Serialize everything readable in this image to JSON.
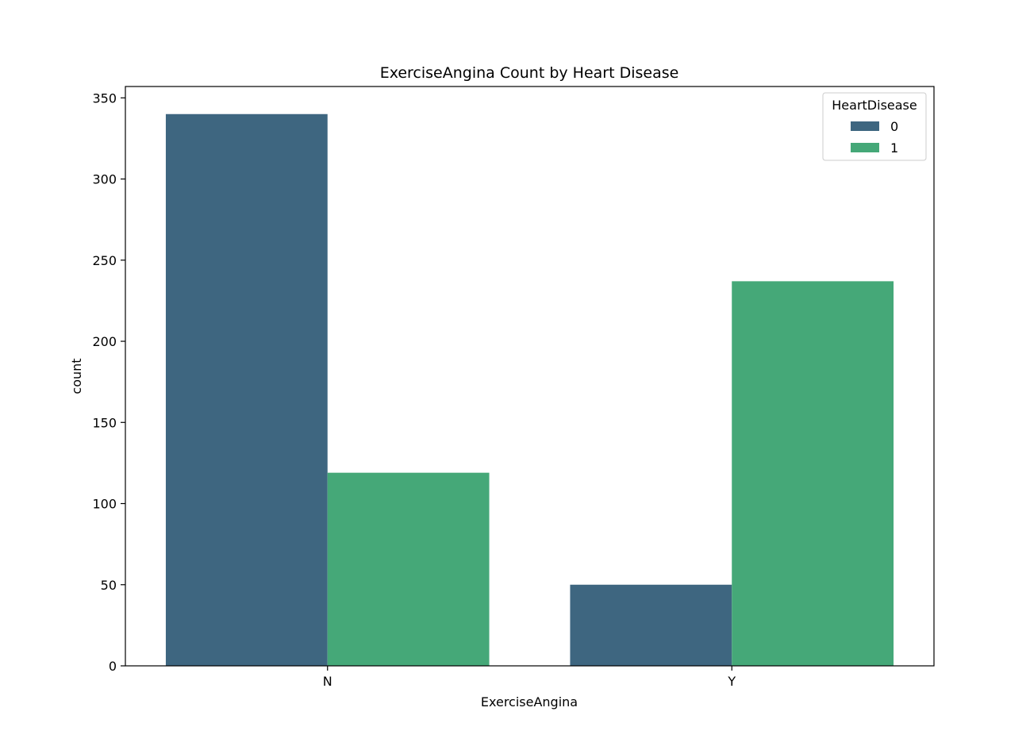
{
  "chart_data": {
    "type": "bar",
    "title": "ExerciseAngina Count by Heart Disease",
    "xlabel": "ExerciseAngina",
    "ylabel": "count",
    "categories": [
      "N",
      "Y"
    ],
    "series": [
      {
        "name": "0",
        "color": "#3e6680",
        "values": [
          340,
          50
        ]
      },
      {
        "name": "1",
        "color": "#45a878",
        "values": [
          119,
          237
        ]
      }
    ],
    "ylim": [
      0,
      357
    ],
    "yticks": [
      0,
      50,
      100,
      150,
      200,
      250,
      300,
      350
    ],
    "grid": false,
    "legend": {
      "title": "HeartDisease",
      "position": "top-right"
    }
  }
}
